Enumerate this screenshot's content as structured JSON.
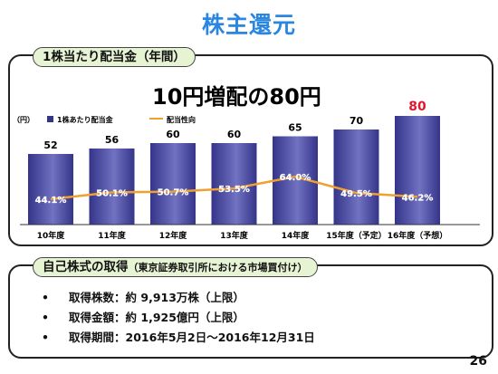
{
  "title": "株主還元",
  "section1": {
    "label": "1株当たり配当金（年間）",
    "headline": "10円増配の80円"
  },
  "section2": {
    "label": "自己株式の取得",
    "sublabel": "（東京証券取引所における市場買付け）",
    "items": [
      {
        "label": "取得株数",
        "value": "約 9,913万株（上限）"
      },
      {
        "label": "取得金額",
        "value": "約 1,925億円（上限）"
      },
      {
        "label": "取得期間",
        "value": "2016年5月2日～2016年12月31日"
      }
    ]
  },
  "page_number": "26",
  "colors": {
    "bar": "#34348a",
    "bar_light": "#7272c2",
    "line": "#f0a030",
    "highlight": "#e0182d",
    "title": "#2a86e0",
    "pill_bg": "#e7f4d4"
  },
  "chart_data": {
    "type": "bar",
    "unit_label": "（円）",
    "categories": [
      "10年度",
      "11年度",
      "12年度",
      "13年度",
      "14年度",
      "15年度（予定）",
      "16年度（予想）"
    ],
    "series": [
      {
        "name": "1株あたり配当金",
        "type": "bar",
        "values": [
          52,
          56,
          60,
          60,
          65,
          70,
          80
        ]
      },
      {
        "name": "配当性向",
        "type": "line",
        "values": [
          44.1,
          50.1,
          50.7,
          53.5,
          64.0,
          49.5,
          46.2
        ],
        "labels": [
          "44.1%",
          "50.1%",
          "50.7%",
          "53.5%",
          "64.0%",
          "49.5%",
          "46.2%"
        ]
      }
    ],
    "value_labels": [
      "52",
      "56",
      "60",
      "60",
      "65",
      "70",
      "80"
    ],
    "highlight_index": 6,
    "legend": "top-left",
    "grid": false
  }
}
